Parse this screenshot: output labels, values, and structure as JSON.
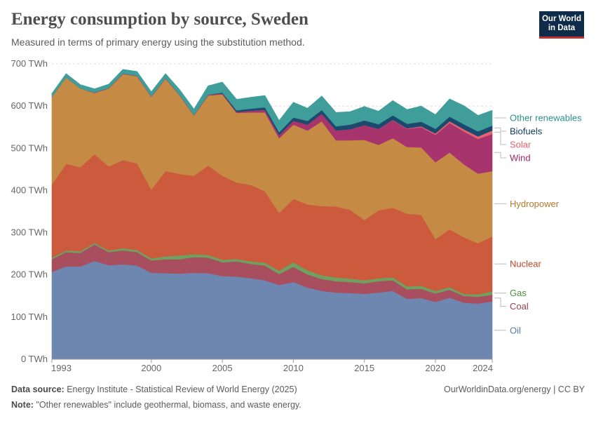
{
  "header": {
    "title": "Energy consumption by source, Sweden",
    "subtitle": "Measured in terms of primary energy using the substitution method.",
    "logo_line1": "Our World",
    "logo_line2": "in Data"
  },
  "footer": {
    "source_label": "Data source:",
    "source_text": "Energy Institute - Statistical Review of World Energy (2025)",
    "note_label": "Note:",
    "note_text": "\"Other renewables\" include geothermal, biomass, and waste energy.",
    "credit": "OurWorldinData.org/energy | CC BY"
  },
  "chart_data": {
    "type": "area",
    "stacked": true,
    "ylim": [
      0,
      700
    ],
    "y_ticks": [
      0,
      100,
      200,
      300,
      400,
      500,
      600,
      700
    ],
    "y_tick_labels": [
      "0 TWh",
      "100 TWh",
      "200 TWh",
      "300 TWh",
      "400 TWh",
      "500 TWh",
      "600 TWh",
      "700 TWh"
    ],
    "x_range": [
      1993,
      2024
    ],
    "x_ticks": [
      1993,
      2000,
      2005,
      2010,
      2015,
      2020,
      2024
    ],
    "x_tick_labels": [
      "1993",
      "2000",
      "2005",
      "2010",
      "2015",
      "2020",
      "2024"
    ],
    "grid": "horizontal dashed",
    "legend": "right, labels at series ends",
    "x": [
      1993,
      1994,
      1995,
      1996,
      1997,
      1998,
      1999,
      2000,
      2001,
      2002,
      2003,
      2004,
      2005,
      2006,
      2007,
      2008,
      2009,
      2010,
      2011,
      2012,
      2013,
      2014,
      2015,
      2016,
      2017,
      2018,
      2019,
      2020,
      2021,
      2022,
      2023,
      2024
    ],
    "series": [
      {
        "name": "Oil",
        "color": "#6d87b1",
        "values": [
          207,
          220,
          220,
          233,
          223,
          225,
          222,
          205,
          204,
          203,
          205,
          204,
          197,
          196,
          192,
          187,
          176,
          183,
          170,
          162,
          158,
          157,
          155,
          158,
          162,
          143,
          145,
          136,
          146,
          134,
          132,
          137
        ]
      },
      {
        "name": "Coal",
        "color": "#a84e5e",
        "values": [
          30,
          34,
          32,
          39,
          31,
          33,
          32,
          29,
          33,
          34,
          37,
          37,
          33,
          36,
          34,
          35,
          26,
          36,
          31,
          28,
          27,
          26,
          25,
          27,
          25,
          23,
          22,
          20,
          19,
          16,
          16,
          16
        ]
      },
      {
        "name": "Gas",
        "color": "#6fa060",
        "values": [
          4,
          4,
          4,
          4,
          4,
          5,
          5,
          5,
          7,
          9,
          7,
          6,
          6,
          6,
          6,
          7,
          8,
          11,
          10,
          9,
          9,
          8,
          7,
          7,
          7,
          7,
          7,
          6,
          6,
          5,
          6,
          8
        ]
      },
      {
        "name": "Nuclear",
        "color": "#cc5a3c",
        "values": [
          173,
          205,
          199,
          210,
          199,
          209,
          205,
          163,
          202,
          193,
          186,
          212,
          199,
          181,
          181,
          169,
          137,
          150,
          156,
          164,
          168,
          163,
          143,
          161,
          165,
          172,
          168,
          123,
          137,
          134,
          121,
          130
        ]
      },
      {
        "name": "Hydropower",
        "color": "#c58a44",
        "values": [
          208,
          205,
          187,
          145,
          185,
          204,
          207,
          220,
          219,
          186,
          143,
          166,
          193,
          165,
          172,
          187,
          177,
          176,
          175,
          201,
          157,
          165,
          190,
          155,
          165,
          158,
          160,
          182,
          182,
          173,
          165,
          155
        ]
      },
      {
        "name": "Wind",
        "color": "#a8346e",
        "values": [
          0,
          0,
          0,
          1,
          1,
          1,
          1,
          1,
          1,
          1,
          1,
          2,
          2,
          2,
          4,
          6,
          7,
          9,
          14,
          18,
          23,
          26,
          35,
          38,
          42,
          43,
          48,
          65,
          70,
          78,
          82,
          88
        ]
      },
      {
        "name": "Solar",
        "color": "#e4636f",
        "values": [
          0,
          0,
          0,
          0,
          0,
          0,
          0,
          0,
          0,
          0,
          0,
          0,
          0,
          0,
          0,
          0,
          0,
          0,
          0,
          0,
          0,
          0,
          0,
          0,
          1,
          1,
          2,
          3,
          4,
          5,
          6,
          8
        ]
      },
      {
        "name": "Biofuels",
        "color": "#1c4a6e",
        "values": [
          0,
          0,
          0,
          0,
          0,
          0,
          0,
          0,
          0,
          0,
          0,
          0,
          2,
          4,
          5,
          6,
          7,
          8,
          9,
          9,
          10,
          11,
          11,
          11,
          11,
          11,
          11,
          11,
          11,
          12,
          12,
          12
        ]
      },
      {
        "name": "Other renewables",
        "color": "#3f9e9a",
        "values": [
          8,
          9,
          9,
          9,
          9,
          10,
          10,
          11,
          11,
          13,
          14,
          21,
          25,
          26,
          27,
          28,
          28,
          36,
          30,
          33,
          33,
          31,
          33,
          31,
          35,
          34,
          37,
          34,
          42,
          44,
          38,
          36
        ]
      }
    ],
    "legend_entries": [
      {
        "name": "Other renewables",
        "color": "#2c8f8a"
      },
      {
        "name": "Biofuels",
        "color": "#0f3b5c"
      },
      {
        "name": "Solar",
        "color": "#e4636f"
      },
      {
        "name": "Wind",
        "color": "#a0266a"
      },
      {
        "name": "Hydropower",
        "color": "#b5772d"
      },
      {
        "name": "Nuclear",
        "color": "#c2452b"
      },
      {
        "name": "Gas",
        "color": "#4f9140"
      },
      {
        "name": "Coal",
        "color": "#9e3d4f"
      },
      {
        "name": "Oil",
        "color": "#5a76a8"
      }
    ]
  }
}
